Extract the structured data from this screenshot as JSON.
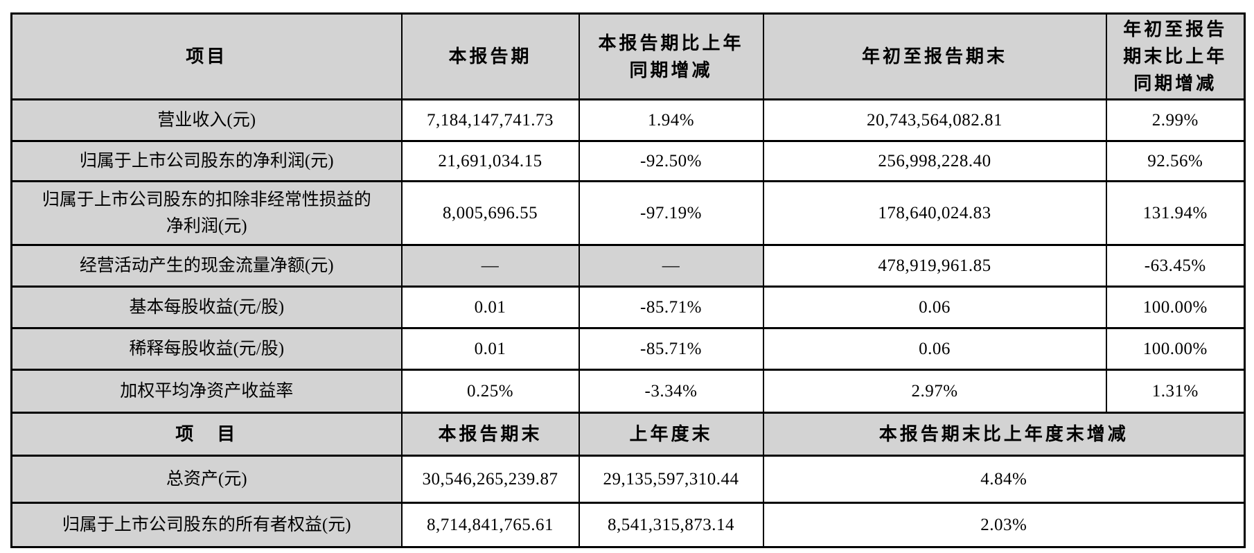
{
  "colors": {
    "header_bg": "#d3d3d3",
    "border": "#000000",
    "page_bg": "#ffffff"
  },
  "table": {
    "section1": {
      "headers": [
        "项目",
        "本报告期",
        "本报告期比上年\n同期增减",
        "年初至报告期末",
        "年初至报告\n期末比上年\n同期增减"
      ],
      "rows": [
        {
          "label": "营业收入(元)",
          "values": [
            "7,184,147,741.73",
            "1.94%",
            "20,743,564,082.81",
            "2.99%"
          ]
        },
        {
          "label": "归属于上市公司股东的净利润(元)",
          "values": [
            "21,691,034.15",
            "-92.50%",
            "256,998,228.40",
            "92.56%"
          ]
        },
        {
          "label": "归属于上市公司股东的扣除非经常性损益的\n净利润(元)",
          "values": [
            "8,005,696.55",
            "-97.19%",
            "178,640,024.83",
            "131.94%"
          ]
        },
        {
          "label": "经营活动产生的现金流量净额(元)",
          "values": [
            "—",
            "—",
            "478,919,961.85",
            "-63.45%"
          ],
          "shaded_value_cells": [
            0,
            1
          ]
        },
        {
          "label": "基本每股收益(元/股)",
          "values": [
            "0.01",
            "-85.71%",
            "0.06",
            "100.00%"
          ]
        },
        {
          "label": "稀释每股收益(元/股)",
          "values": [
            "0.01",
            "-85.71%",
            "0.06",
            "100.00%"
          ]
        },
        {
          "label": "加权平均净资产收益率",
          "values": [
            "0.25%",
            "-3.34%",
            "2.97%",
            "1.31%"
          ]
        }
      ]
    },
    "section2": {
      "headers": [
        "项　目",
        "本报告期末",
        "上年度末",
        "本报告期末比上年度末增减"
      ],
      "rows": [
        {
          "label": "总资产(元)",
          "values": [
            "30,546,265,239.87",
            "29,135,597,310.44",
            "4.84%"
          ]
        },
        {
          "label": "归属于上市公司股东的所有者权益(元)",
          "values": [
            "8,714,841,765.61",
            "8,541,315,873.14",
            "2.03%"
          ]
        }
      ]
    }
  }
}
